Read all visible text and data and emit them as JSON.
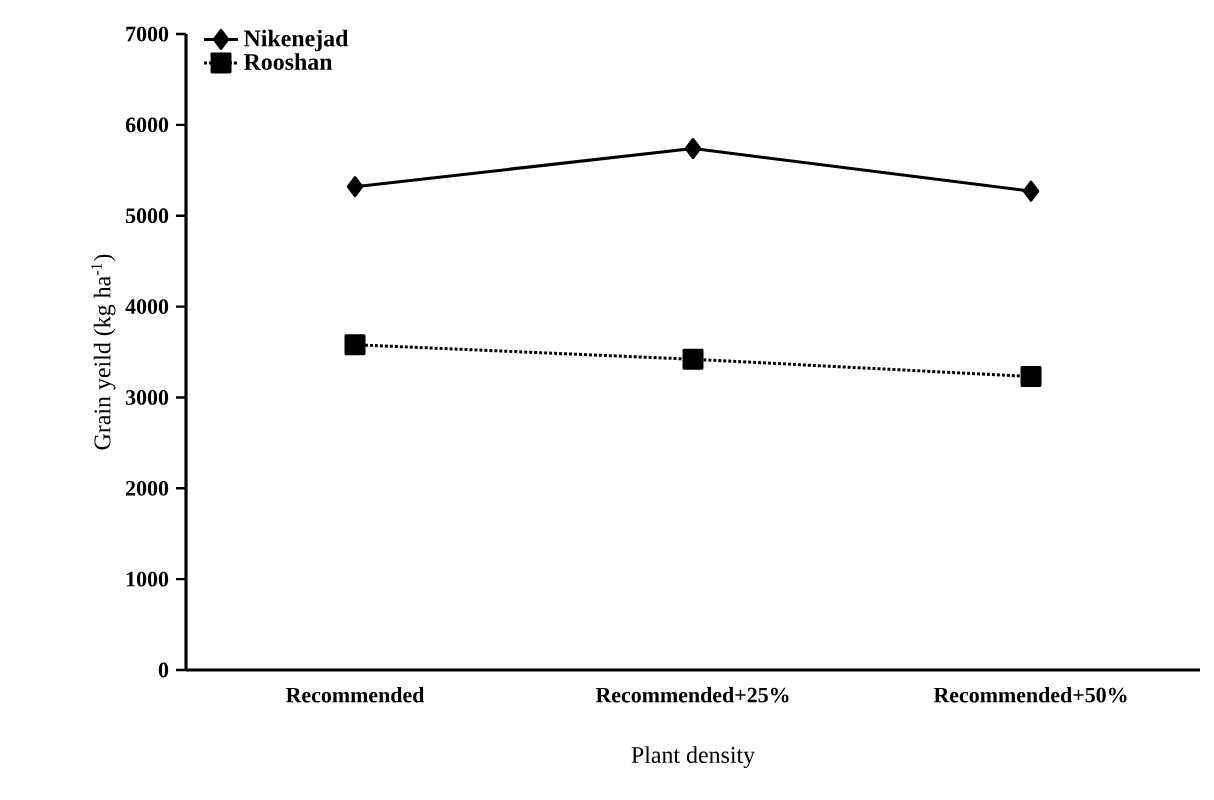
{
  "chart_data": {
    "type": "line",
    "xlabel": "Plant density",
    "ylabel": "Grain yeild (kg ha$^{-1}$)",
    "categories": [
      "Recommended",
      "Recommended+25%",
      "Recommended+50%"
    ],
    "series": [
      {
        "name": "Nikenejad",
        "color": "#000000",
        "values": [
          5320,
          5740,
          5270
        ],
        "marker": "diamond",
        "line_style": "solid"
      },
      {
        "name": "Rooshan",
        "color": "#000000",
        "values": [
          3580,
          3420,
          3230
        ],
        "marker": "square",
        "line_style": "dotted"
      }
    ],
    "ylim": [
      0,
      7000
    ],
    "yticks": [
      0,
      1000,
      2000,
      3000,
      4000,
      5000,
      6000,
      7000
    ],
    "grid": false,
    "legend": "top left"
  }
}
